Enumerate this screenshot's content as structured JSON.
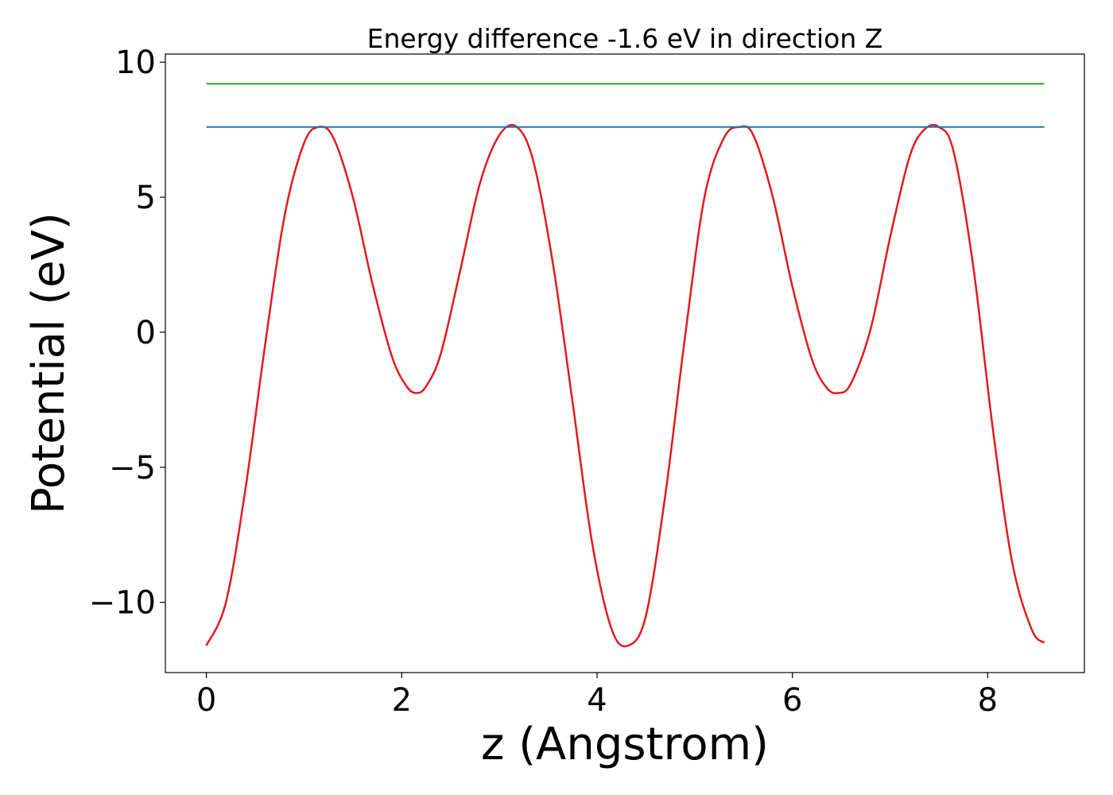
{
  "chart_data": {
    "type": "line",
    "title": "Energy difference -1.6 eV in direction Z",
    "xlabel": "z (Angstrom)",
    "ylabel": "Potential (eV)",
    "xlim": [
      -0.42,
      8.99
    ],
    "ylim": [
      -12.6,
      10.3
    ],
    "xticks": [
      0,
      2,
      4,
      6,
      8
    ],
    "xtick_labels": [
      "0",
      "2",
      "4",
      "6",
      "8"
    ],
    "yticks": [
      -10,
      -5,
      0,
      5,
      10
    ],
    "ytick_labels": [
      "−10",
      "−5",
      "0",
      "5",
      "10"
    ],
    "grid": false,
    "series": [
      {
        "color": "#e31a1c",
        "x": [
          0.0,
          0.2,
          0.4,
          0.6,
          0.8,
          1.0,
          1.15,
          1.3,
          1.5,
          1.7,
          1.9,
          2.05,
          2.15,
          2.25,
          2.4,
          2.6,
          2.8,
          3.0,
          3.18,
          3.35,
          3.55,
          3.75,
          3.95,
          4.15,
          4.32,
          4.5,
          4.7,
          4.9,
          5.1,
          5.3,
          5.46,
          5.6,
          5.8,
          6.0,
          6.2,
          6.35,
          6.47,
          6.6,
          6.8,
          7.0,
          7.2,
          7.35,
          7.5,
          7.65,
          7.85,
          8.05,
          8.25,
          8.45,
          8.58
        ],
        "y": [
          -11.6,
          -10.0,
          -5.8,
          -0.5,
          4.3,
          7.0,
          7.6,
          7.2,
          5.0,
          1.8,
          -0.9,
          -2.0,
          -2.25,
          -2.0,
          -0.8,
          2.3,
          5.5,
          7.3,
          7.6,
          6.3,
          2.5,
          -2.6,
          -7.8,
          -11.0,
          -11.6,
          -10.5,
          -6.0,
          -0.2,
          5.0,
          7.2,
          7.6,
          7.3,
          5.0,
          1.7,
          -1.0,
          -2.05,
          -2.25,
          -1.9,
          0.1,
          3.5,
          6.5,
          7.5,
          7.6,
          6.7,
          2.5,
          -3.5,
          -8.5,
          -11.0,
          -11.5
        ]
      },
      {
        "color": "#1f77b4",
        "x": [
          0.0,
          8.58
        ],
        "y": [
          7.6,
          7.6
        ]
      },
      {
        "color": "#2ca02c",
        "x": [
          0.0,
          8.58
        ],
        "y": [
          9.2,
          9.2
        ]
      }
    ]
  }
}
